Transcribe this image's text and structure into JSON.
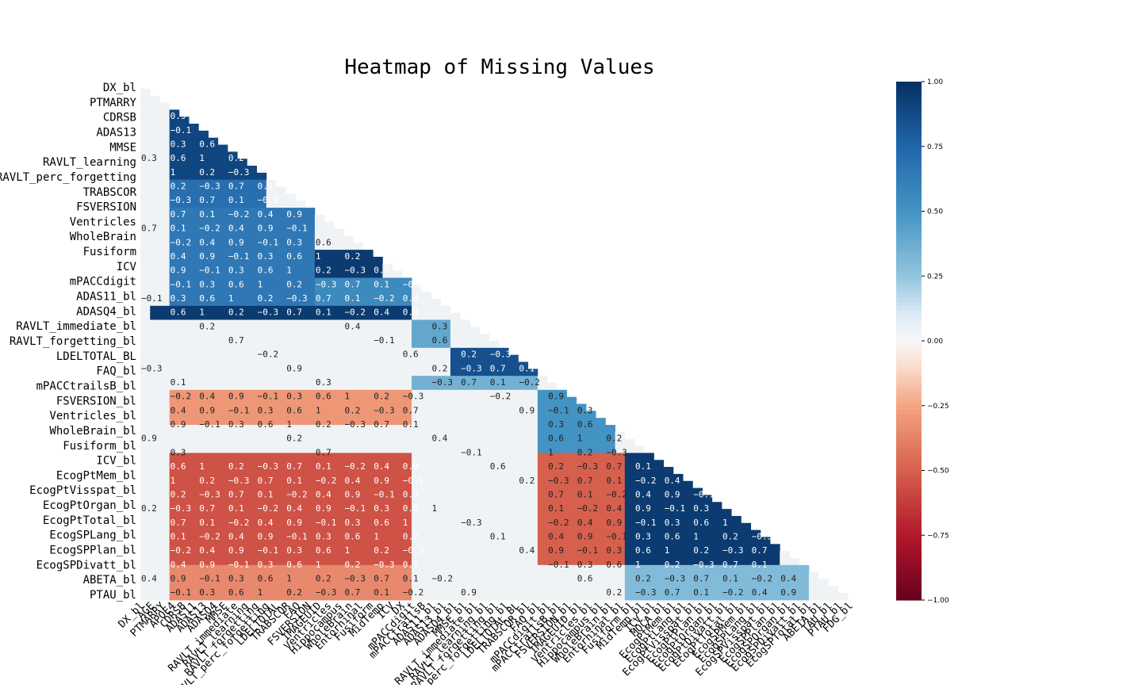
{
  "chart_data": {
    "type": "heatmap",
    "title": "Heatmap of Missing Values",
    "triangle": "lower",
    "y_tick_labels_shown": [
      "DX_bl",
      "PTMARRY",
      "CDRSB",
      "ADAS13",
      "MMSE",
      "RAVLT_learning",
      "RAVLT_perc_forgetting",
      "TRABSCOR",
      "FSVERSION",
      "Ventricles",
      "WholeBrain",
      "Fusiform",
      "ICV",
      "mPACCdigit",
      "ADAS11_bl",
      "ADASQ4_bl",
      "RAVLT_immediate_bl",
      "RAVLT_forgetting_bl",
      "LDELTOTAL_BL",
      "FAQ_bl",
      "mPACCtrailsB_bl",
      "FSVERSION_bl",
      "Ventricles_bl",
      "WholeBrain_bl",
      "Fusiform_bl",
      "ICV_bl",
      "EcogPtMem_bl",
      "EcogPtVisspat_bl",
      "EcogPtOrgan_bl",
      "EcogPtTotal_bl",
      "EcogSPLang_bl",
      "EcogSPPlan_bl",
      "EcogSPDivatt_bl",
      "ABETA_bl",
      "PTAU_bl"
    ],
    "x_tick_labels_shown": [
      "DX_bl",
      "AGE",
      "PTMARRY",
      "APOE4",
      "CDRSB",
      "ADAS11",
      "ADAS13",
      "ADASQ4",
      "MMSE",
      "RAVLT_immediate",
      "RAVLT_learning",
      "RAVLT_forgetting",
      "RAVLT_perc_forgetting",
      "LDELTOTAL",
      "TRABSCOR",
      "FAQ",
      "FSVERSION",
      "IMAGEUID",
      "Ventricles",
      "Hippocampus",
      "WholeBrain",
      "Entorhinal",
      "Fusiform",
      "MidTemp",
      "ICV",
      "DX",
      "mPACCdigit",
      "mPACCtrailsB",
      "ADAS11_bl",
      "ADAS13_bl",
      "ADASQ4_bl",
      "MMSE_bl",
      "RAVLT_immediate_bl",
      "RAVLT_learning_bl",
      "RAVLT_forgetting_bl",
      "RAVLT_perc_forgetting_bl",
      "LDELTOTAL_BL",
      "TRABSCOR_bl",
      "FAQ_bl",
      "mPACCdigit_bl",
      "mPACCtrailsB_bl",
      "FSVERSION_bl",
      "IMAGEUID_bl",
      "Ventricles_bl",
      "Hippocampus_bl",
      "WholeBrain_bl",
      "Entorhinal_bl",
      "Fusiform_bl",
      "MidTemp_bl",
      "ICV_bl",
      "MOCA_bl",
      "EcogPtMem_bl",
      "EcogPtLang_bl",
      "EcogPtVisspat_bl",
      "EcogPtPlan_bl",
      "EcogPtOrgan_bl",
      "EcogPtDivatt_bl",
      "EcogPtTotal_bl",
      "EcogSPMem_bl",
      "EcogSPLang_bl",
      "EcogSPVisspat_bl",
      "EcogSPPlan_bl",
      "EcogSPOrgan_bl",
      "EcogSPDivatt_bl",
      "EcogSPTotal_bl",
      "ABETA_bl",
      "TAU_bl",
      "PTAU_bl",
      "FDG_bl"
    ],
    "vmin": -1.0,
    "vmax": 1.0,
    "colormap": "RdBu",
    "colorbar_ticks": [
      "1.00",
      "0.75",
      "0.50",
      "0.25",
      "0.00",
      "−0.25",
      "−0.50",
      "−0.75",
      "−1.00"
    ],
    "blocks": [
      {
        "rows": [
          4,
          14
        ],
        "cols": [
          3,
          13
        ],
        "value": 0.9
      },
      {
        "rows": [
          14,
          18
        ],
        "cols": [
          3,
          13
        ],
        "value": 0.7
      },
      {
        "rows": [
          18,
          21
        ],
        "cols": [
          13,
          18
        ],
        "value": 0.6
      },
      {
        "rows": [
          18,
          32
        ],
        "cols": [
          3,
          18
        ],
        "value": 0.65
      },
      {
        "rows": [
          24,
          28
        ],
        "cols": [
          18,
          25
        ],
        "value": 0.95
      },
      {
        "rows": [
          28,
          32
        ],
        "cols": [
          18,
          28
        ],
        "value": 0.55
      },
      {
        "rows": [
          32,
          34
        ],
        "cols": [
          1,
          28
        ],
        "value": 0.95
      },
      {
        "rows": [
          34,
          38
        ],
        "cols": [
          28,
          32
        ],
        "value": 0.4
      },
      {
        "rows": [
          38,
          42
        ],
        "cols": [
          32,
          41
        ],
        "value": 0.85
      },
      {
        "rows": [
          42,
          44
        ],
        "cols": [
          28,
          41
        ],
        "value": 0.35
      },
      {
        "rows": [
          44,
          49
        ],
        "cols": [
          3,
          28
        ],
        "value": -0.3
      },
      {
        "rows": [
          44,
          53
        ],
        "cols": [
          41,
          49
        ],
        "value": 0.5
      },
      {
        "rows": [
          53,
          69
        ],
        "cols": [
          3,
          28
        ],
        "value": -0.55
      },
      {
        "rows": [
          53,
          69
        ],
        "cols": [
          41,
          50
        ],
        "value": -0.5
      },
      {
        "rows": [
          53,
          69
        ],
        "cols": [
          50,
          66
        ],
        "value": 0.95
      },
      {
        "rows": [
          69,
          75
        ],
        "cols": [
          3,
          28
        ],
        "value": -0.35
      },
      {
        "rows": [
          69,
          75
        ],
        "cols": [
          50,
          69
        ],
        "value": 0.3
      }
    ],
    "cell_annotations_shown": [
      "0.1",
      "−0.1",
      "0.2",
      "−0.2",
      "0.3",
      "−0.3",
      "0.4",
      "0.6",
      "0.7",
      "0.9",
      "1"
    ]
  }
}
